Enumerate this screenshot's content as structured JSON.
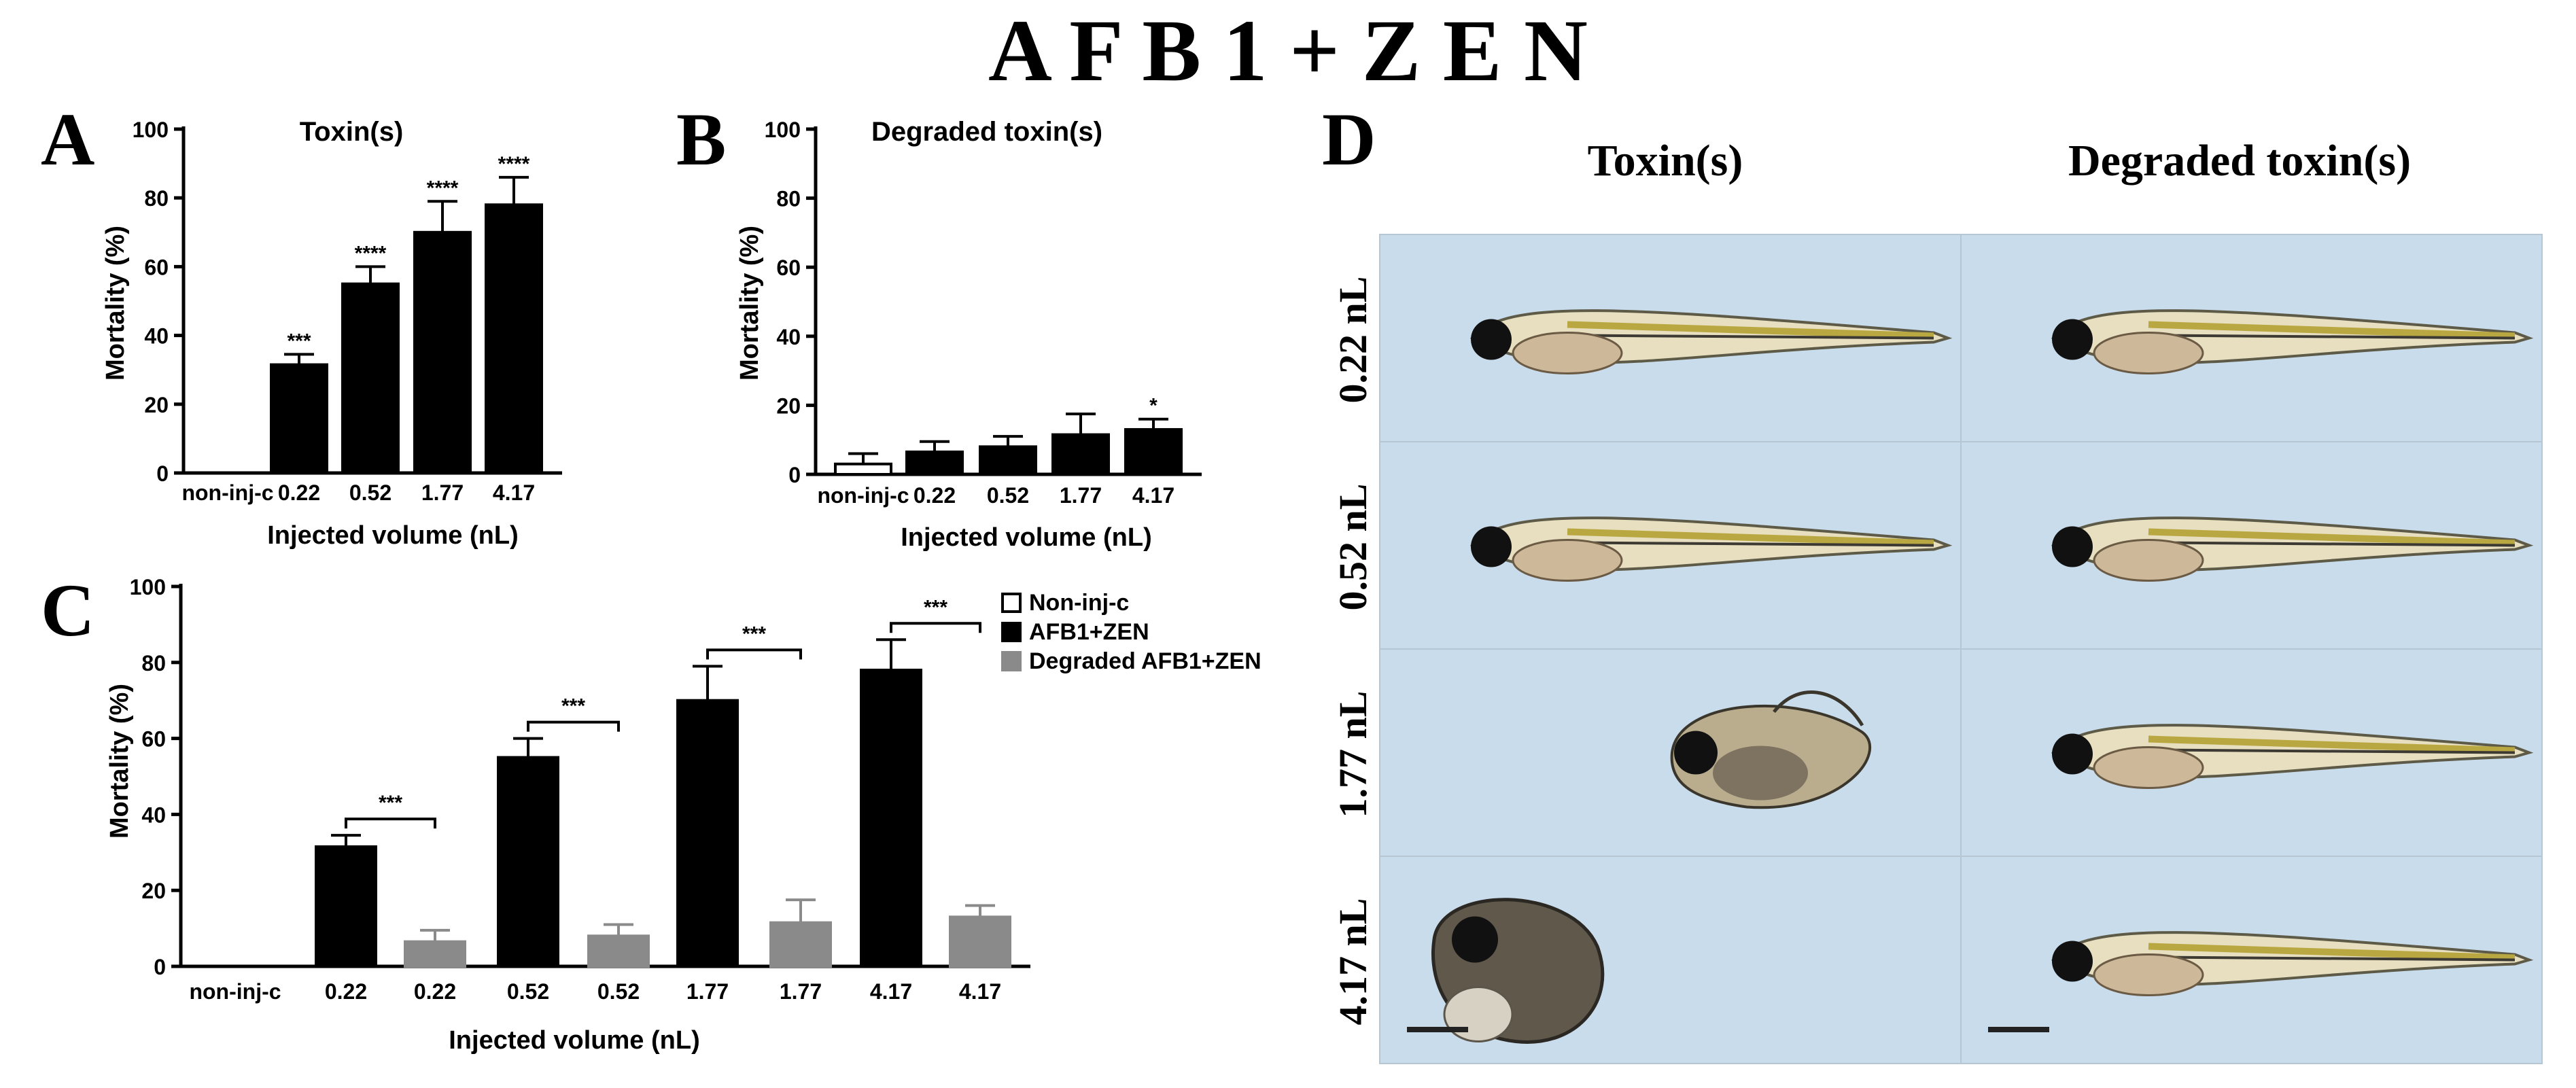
{
  "figure": {
    "main_title": "A F B 1 + Z E N",
    "panel_letters": {
      "A": "A",
      "B": "B",
      "C": "C",
      "D": "D"
    }
  },
  "chart_data": [
    {
      "id": "A",
      "type": "bar",
      "title": "Toxin(s)",
      "xlabel": "Injected volume (nL)",
      "ylabel": "Mortality (%)",
      "ylim": [
        0,
        100
      ],
      "yticks": [
        0,
        20,
        40,
        60,
        80,
        100
      ],
      "categories": [
        "non-inj-c",
        "0.22",
        "0.52",
        "1.77",
        "4.17"
      ],
      "values": [
        0,
        31.5,
        55,
        70,
        78
      ],
      "errors": [
        0,
        3,
        5,
        9,
        8
      ],
      "significance": [
        "",
        "***",
        "****",
        "****",
        "****"
      ],
      "bar_colors": [
        "#ffffff",
        "#000000",
        "#000000",
        "#000000",
        "#000000"
      ]
    },
    {
      "id": "B",
      "type": "bar",
      "title": "Degraded toxin(s)",
      "xlabel": "Injected volume (nL)",
      "ylabel": "Mortality (%)",
      "ylim": [
        0,
        100
      ],
      "yticks": [
        0,
        20,
        40,
        60,
        80,
        100
      ],
      "categories": [
        "non-inj-c",
        "0.22",
        "0.52",
        "1.77",
        "4.17"
      ],
      "values": [
        3,
        6.5,
        8,
        11.5,
        13
      ],
      "errors": [
        3,
        3,
        3,
        6,
        3
      ],
      "significance": [
        "",
        "",
        "",
        "",
        "*"
      ],
      "bar_colors": [
        "#ffffff",
        "#000000",
        "#000000",
        "#000000",
        "#000000"
      ]
    },
    {
      "id": "C",
      "type": "bar",
      "title": "",
      "xlabel": "Injected volume (nL)",
      "ylabel": "Mortality (%)",
      "ylim": [
        0,
        100
      ],
      "yticks": [
        0,
        20,
        40,
        60,
        80,
        100
      ],
      "categories": [
        "non-inj-c",
        "0.22",
        "0.22",
        "0.52",
        "0.52",
        "1.77",
        "1.77",
        "4.17",
        "4.17"
      ],
      "values": [
        0,
        31.5,
        6.5,
        55,
        8,
        70,
        11.5,
        78,
        13
      ],
      "errors": [
        0,
        3,
        3,
        5,
        3,
        9,
        6,
        8,
        3
      ],
      "bar_series": [
        0,
        1,
        2,
        1,
        2,
        1,
        2,
        1,
        2
      ],
      "series": [
        {
          "name": "Non-inj-c",
          "color": "#ffffff"
        },
        {
          "name": "AFB1+ZEN",
          "color": "#000000"
        },
        {
          "name": "Degraded AFB1+ZEN",
          "color": "#8a8a8a"
        }
      ],
      "comparisons": [
        {
          "from": 1,
          "to": 2,
          "label": "***"
        },
        {
          "from": 3,
          "to": 4,
          "label": "***"
        },
        {
          "from": 5,
          "to": 6,
          "label": "***"
        },
        {
          "from": 7,
          "to": 8,
          "label": "***"
        }
      ],
      "legend_position": "top-right"
    }
  ],
  "panel_d": {
    "col_headers": [
      "Toxin(s)",
      "Degraded toxin(s)"
    ],
    "row_labels": [
      "0.22 nL",
      "0.52 nL",
      "1.77 nL",
      "4.17 nL"
    ],
    "background_color": "#c9dcec",
    "toxin_states": [
      "normal",
      "normal",
      "deformed",
      "severely-deformed"
    ]
  }
}
